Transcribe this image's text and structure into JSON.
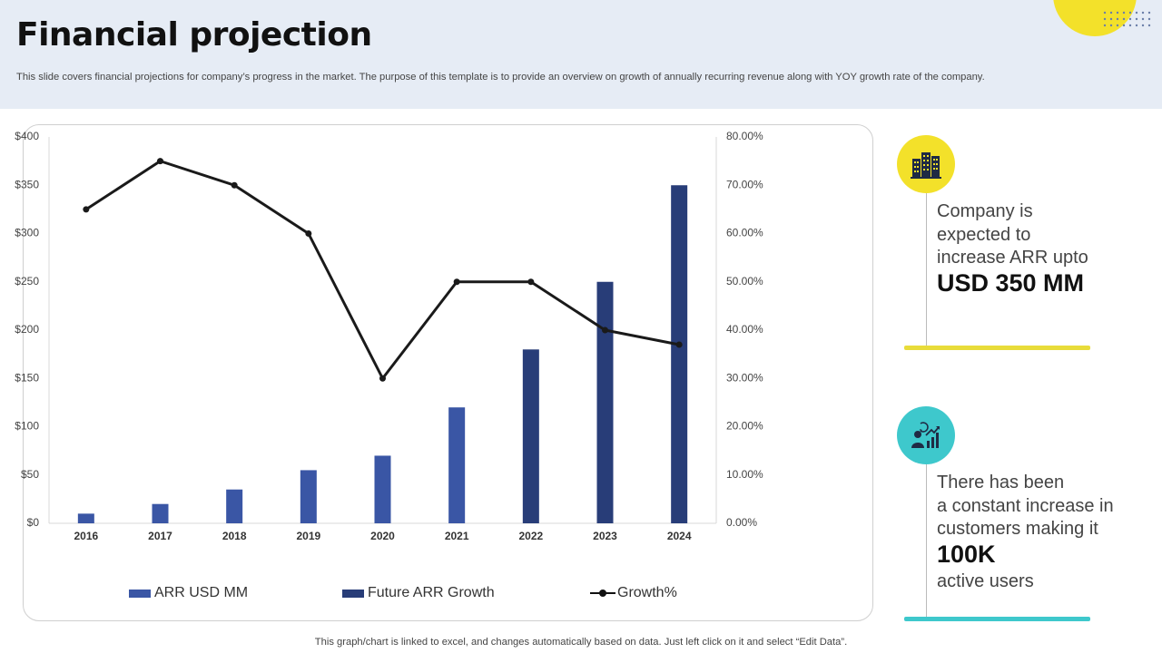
{
  "header": {
    "title": "Financial projection",
    "subtitle": "This slide covers financial projections for company’s progress in the market. The purpose of this template is to provide an overview  on growth of annually recurring revenue along with YOY  growth rate of the company."
  },
  "colors": {
    "arr": "#3a56a5",
    "future": "#283d78",
    "growth": "#1a1a1a",
    "accent_yellow": "#f3e12a",
    "accent_teal": "#3ec8cc"
  },
  "chart_data": {
    "type": "bar",
    "categories": [
      "2016",
      "2017",
      "2018",
      "2019",
      "2020",
      "2021",
      "2022",
      "2023",
      "2024"
    ],
    "series": [
      {
        "name": "ARR USD MM",
        "type": "bar",
        "axis": "left",
        "values": [
          10,
          20,
          35,
          55,
          70,
          120,
          null,
          null,
          null
        ]
      },
      {
        "name": "Future ARR Growth",
        "type": "bar",
        "axis": "left",
        "values": [
          null,
          null,
          null,
          null,
          null,
          null,
          180,
          250,
          350
        ]
      },
      {
        "name": "Growth%",
        "type": "line",
        "axis": "right",
        "values": [
          65,
          75,
          70,
          60,
          30,
          50,
          50,
          40,
          37
        ]
      }
    ],
    "ylim": [
      0,
      400
    ],
    "y2lim": [
      0,
      80
    ],
    "yticks": [
      "$0",
      "$50",
      "$100",
      "$150",
      "$200",
      "$250",
      "$300",
      "$350",
      "$400"
    ],
    "y2ticks": [
      "0.00%",
      "10.00%",
      "20.00%",
      "30.00%",
      "40.00%",
      "50.00%",
      "60.00%",
      "70.00%",
      "80.00%"
    ],
    "legend": "bottom",
    "grid": false
  },
  "info": {
    "card1": {
      "icon": "buildings-icon",
      "lines": [
        "Company  is",
        "expected to",
        "increase ARR upto"
      ],
      "highlight": "USD 350 MM"
    },
    "card2": {
      "icon": "user-growth-icon",
      "lines": [
        "There has been",
        "a constant increase in",
        "customers making  it"
      ],
      "highlight": "100K",
      "tail": "active users"
    }
  },
  "footnote": "This graph/chart is linked to excel,  and changes automatically based on data. Just left click on it and select “Edit Data”."
}
